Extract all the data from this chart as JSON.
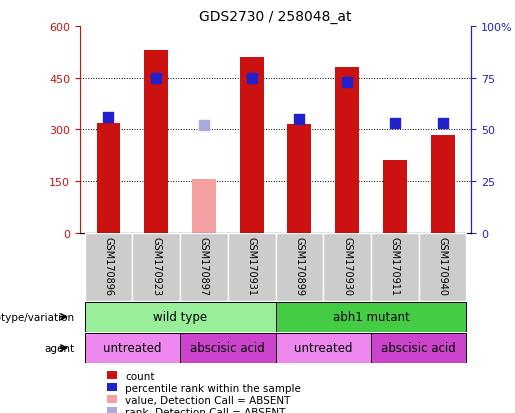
{
  "title": "GDS2730 / 258048_at",
  "samples": [
    "GSM170896",
    "GSM170923",
    "GSM170897",
    "GSM170931",
    "GSM170899",
    "GSM170930",
    "GSM170911",
    "GSM170940"
  ],
  "count_values": [
    320,
    530,
    155,
    510,
    315,
    480,
    210,
    285
  ],
  "count_absent": [
    false,
    false,
    true,
    false,
    false,
    false,
    false,
    false
  ],
  "percentile_values": [
    56,
    75,
    52,
    75,
    55,
    73,
    53,
    53
  ],
  "percentile_absent": [
    false,
    false,
    true,
    false,
    false,
    false,
    false,
    false
  ],
  "ylim_left": [
    0,
    600
  ],
  "ylim_right": [
    0,
    100
  ],
  "yticks_left": [
    0,
    150,
    300,
    450,
    600
  ],
  "yticks_right": [
    0,
    25,
    50,
    75,
    100
  ],
  "ytick_labels_right": [
    "0",
    "25",
    "50",
    "75",
    "100%"
  ],
  "bar_color_normal": "#cc1111",
  "bar_color_absent": "#f5a0a0",
  "dot_color_normal": "#2222cc",
  "dot_color_absent": "#aaaadd",
  "genotype_groups": [
    {
      "label": "wild type",
      "span": [
        0,
        4
      ],
      "color": "#99ee99"
    },
    {
      "label": "abh1 mutant",
      "span": [
        4,
        8
      ],
      "color": "#44cc44"
    }
  ],
  "agent_groups": [
    {
      "label": "untreated",
      "span": [
        0,
        2
      ],
      "color": "#ee88ee"
    },
    {
      "label": "abscisic acid",
      "span": [
        2,
        4
      ],
      "color": "#cc44cc"
    },
    {
      "label": "untreated",
      "span": [
        4,
        6
      ],
      "color": "#ee88ee"
    },
    {
      "label": "abscisic acid",
      "span": [
        6,
        8
      ],
      "color": "#cc44cc"
    }
  ],
  "legend_items": [
    {
      "label": "count",
      "color": "#cc1111"
    },
    {
      "label": "percentile rank within the sample",
      "color": "#2222cc"
    },
    {
      "label": "value, Detection Call = ABSENT",
      "color": "#f5a0a0"
    },
    {
      "label": "rank, Detection Call = ABSENT",
      "color": "#aaaadd"
    }
  ],
  "tick_label_color_left": "#cc1111",
  "tick_label_color_right": "#2222cc",
  "bar_width": 0.5,
  "dot_size": 55,
  "sample_col_color": "#cccccc"
}
